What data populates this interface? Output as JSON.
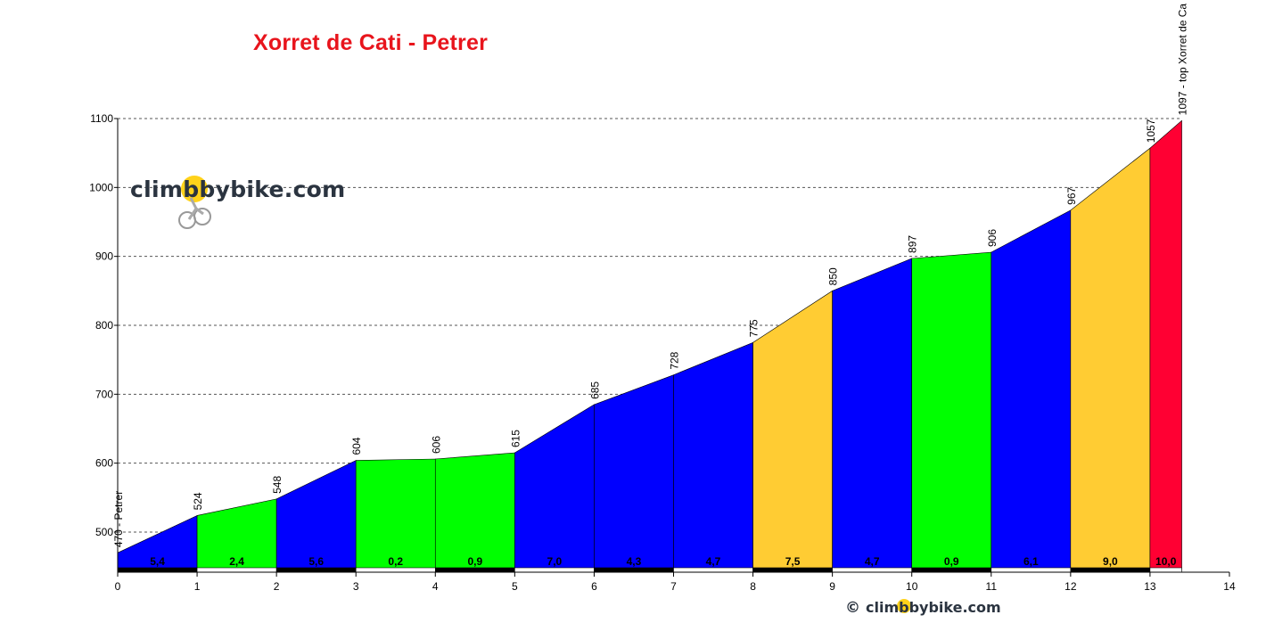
{
  "title": "Xorret de Cati - Petrer",
  "logo": {
    "text": "climbbybike.com",
    "copyright_symbol": "©"
  },
  "colors": {
    "title": "#e8141c",
    "green": "#00ff00",
    "blue": "#0000ff",
    "yellow": "#ffcc33",
    "red": "#ff0033",
    "grid": "#555555"
  },
  "chart_data": {
    "type": "area",
    "title": "Xorret de Cati - Petrer",
    "xlabel": "",
    "ylabel": "",
    "xlim": [
      0,
      14
    ],
    "ylim": [
      440,
      1100
    ],
    "x_ticks": [
      0,
      1,
      2,
      3,
      4,
      5,
      6,
      7,
      8,
      9,
      10,
      11,
      12,
      13,
      14
    ],
    "y_ticks": [
      500,
      600,
      700,
      800,
      900,
      1000,
      1100
    ],
    "grid": "horizontal dashed",
    "points": [
      {
        "x": 0,
        "y": 470,
        "label": "470 - Petrer"
      },
      {
        "x": 1,
        "y": 524,
        "label": "524"
      },
      {
        "x": 2,
        "y": 548,
        "label": "548"
      },
      {
        "x": 3,
        "y": 604,
        "label": "604"
      },
      {
        "x": 4,
        "y": 606,
        "label": "606"
      },
      {
        "x": 5,
        "y": 615,
        "label": "615"
      },
      {
        "x": 6,
        "y": 685,
        "label": "685"
      },
      {
        "x": 7,
        "y": 728,
        "label": "728"
      },
      {
        "x": 8,
        "y": 775,
        "label": "775"
      },
      {
        "x": 9,
        "y": 850,
        "label": "850"
      },
      {
        "x": 10,
        "y": 897,
        "label": "897"
      },
      {
        "x": 11,
        "y": 906,
        "label": "906"
      },
      {
        "x": 12,
        "y": 967,
        "label": "967"
      },
      {
        "x": 13,
        "y": 1057,
        "label": "1057"
      },
      {
        "x": 13.4,
        "y": 1097,
        "label": "1097 - top Xorret de Ca"
      }
    ],
    "segments": [
      {
        "from": 0,
        "to": 1,
        "gradient": "5,4",
        "color": "blue"
      },
      {
        "from": 1,
        "to": 2,
        "gradient": "2,4",
        "color": "green"
      },
      {
        "from": 2,
        "to": 3,
        "gradient": "5,6",
        "color": "blue"
      },
      {
        "from": 3,
        "to": 4,
        "gradient": "0,2",
        "color": "green"
      },
      {
        "from": 4,
        "to": 5,
        "gradient": "0,9",
        "color": "green"
      },
      {
        "from": 5,
        "to": 6,
        "gradient": "7,0",
        "color": "blue"
      },
      {
        "from": 6,
        "to": 7,
        "gradient": "4,3",
        "color": "blue"
      },
      {
        "from": 7,
        "to": 8,
        "gradient": "4,7",
        "color": "blue"
      },
      {
        "from": 8,
        "to": 9,
        "gradient": "7,5",
        "color": "yellow"
      },
      {
        "from": 9,
        "to": 10,
        "gradient": "4,7",
        "color": "blue"
      },
      {
        "from": 10,
        "to": 11,
        "gradient": "0,9",
        "color": "green"
      },
      {
        "from": 11,
        "to": 12,
        "gradient": "6,1",
        "color": "blue"
      },
      {
        "from": 12,
        "to": 13,
        "gradient": "9,0",
        "color": "yellow"
      },
      {
        "from": 13,
        "to": 13.4,
        "gradient": "10,0",
        "color": "red"
      }
    ]
  }
}
